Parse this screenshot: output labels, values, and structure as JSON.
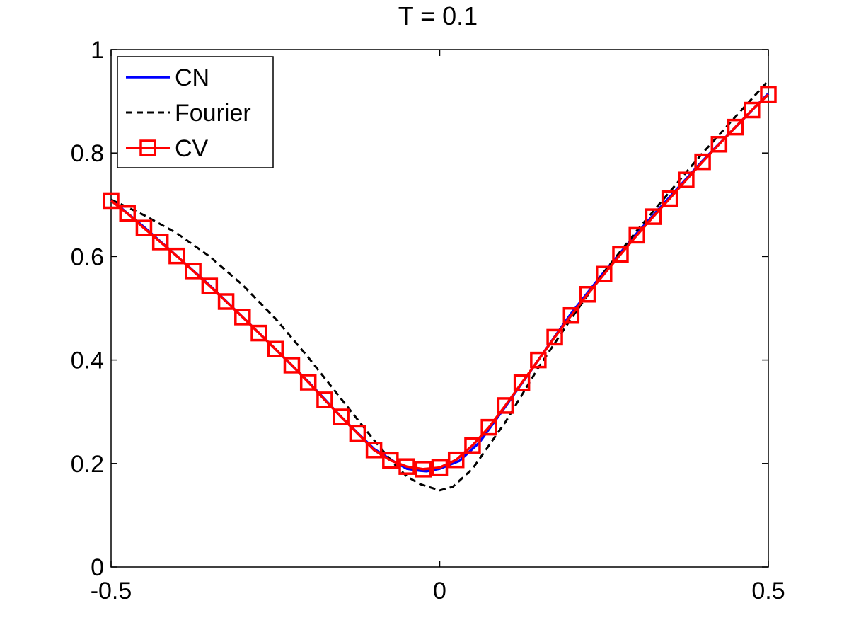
{
  "chart_data": {
    "type": "line",
    "title": "T = 0.1",
    "xlabel": "",
    "ylabel": "",
    "xlim": [
      -0.5,
      0.5
    ],
    "ylim": [
      0,
      1
    ],
    "xticks": [
      -0.5,
      0,
      0.5
    ],
    "xtick_labels": [
      "-0.5",
      "0",
      "0.5"
    ],
    "yticks": [
      0,
      0.2,
      0.4,
      0.6,
      0.8,
      1
    ],
    "ytick_labels": [
      "0",
      "0.2",
      "0.4",
      "0.6",
      "0.8",
      "1"
    ],
    "grid": false,
    "legend_position": "top-left",
    "series": [
      {
        "name": "CN",
        "color": "#0000ff",
        "style": "solid",
        "marker": "none",
        "x": [
          -0.5,
          -0.45,
          -0.4,
          -0.35,
          -0.3,
          -0.25,
          -0.2,
          -0.15,
          -0.1,
          -0.07,
          -0.05,
          -0.03,
          -0.02,
          0.0,
          0.03,
          0.06,
          0.1,
          0.15,
          0.2,
          0.25,
          0.3,
          0.35,
          0.4,
          0.45,
          0.5
        ],
        "y": [
          0.71,
          0.657,
          0.601,
          0.544,
          0.483,
          0.421,
          0.358,
          0.29,
          0.228,
          0.204,
          0.19,
          0.186,
          0.185,
          0.19,
          0.205,
          0.24,
          0.31,
          0.4,
          0.49,
          0.57,
          0.645,
          0.715,
          0.785,
          0.85,
          0.915
        ]
      },
      {
        "name": "Fourier",
        "color": "#000000",
        "style": "dashed",
        "marker": "none",
        "x": [
          -0.5,
          -0.45,
          -0.4,
          -0.35,
          -0.3,
          -0.25,
          -0.2,
          -0.15,
          -0.1,
          -0.07,
          -0.05,
          -0.03,
          -0.01,
          0.0,
          0.02,
          0.05,
          0.1,
          0.15,
          0.2,
          0.25,
          0.3,
          0.35,
          0.4,
          0.45,
          0.5
        ],
        "y": [
          0.71,
          0.68,
          0.645,
          0.6,
          0.545,
          0.48,
          0.405,
          0.325,
          0.245,
          0.2,
          0.175,
          0.16,
          0.152,
          0.148,
          0.155,
          0.19,
          0.28,
          0.385,
          0.48,
          0.57,
          0.65,
          0.725,
          0.8,
          0.87,
          0.94
        ]
      },
      {
        "name": "CV",
        "color": "#ff0000",
        "style": "solid",
        "marker": "square",
        "x": [
          -0.5,
          -0.475,
          -0.45,
          -0.425,
          -0.4,
          -0.375,
          -0.35,
          -0.325,
          -0.3,
          -0.275,
          -0.25,
          -0.225,
          -0.2,
          -0.175,
          -0.15,
          -0.125,
          -0.1,
          -0.075,
          -0.05,
          -0.025,
          0.0,
          0.025,
          0.05,
          0.075,
          0.1,
          0.125,
          0.15,
          0.175,
          0.2,
          0.225,
          0.25,
          0.275,
          0.3,
          0.325,
          0.35,
          0.375,
          0.4,
          0.425,
          0.45,
          0.475,
          0.5
        ],
        "y": [
          0.708,
          0.683,
          0.655,
          0.628,
          0.601,
          0.572,
          0.543,
          0.513,
          0.483,
          0.452,
          0.421,
          0.39,
          0.357,
          0.323,
          0.29,
          0.258,
          0.226,
          0.206,
          0.194,
          0.189,
          0.192,
          0.207,
          0.235,
          0.27,
          0.312,
          0.356,
          0.4,
          0.444,
          0.486,
          0.527,
          0.566,
          0.604,
          0.641,
          0.677,
          0.712,
          0.748,
          0.783,
          0.817,
          0.85,
          0.883,
          0.913
        ]
      }
    ]
  }
}
